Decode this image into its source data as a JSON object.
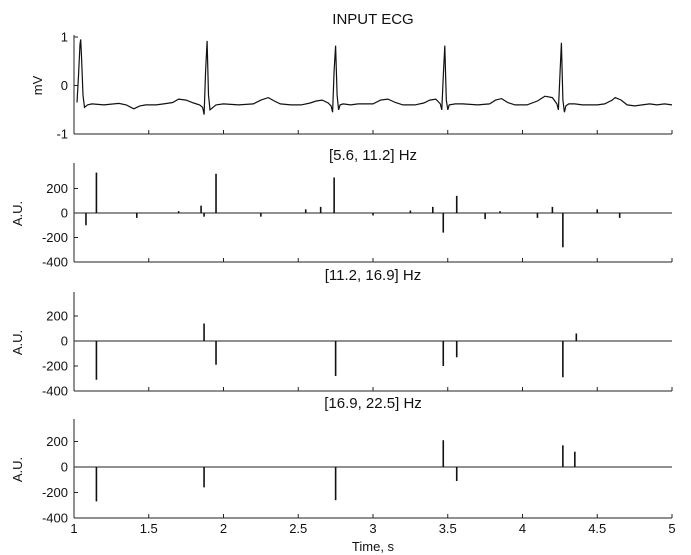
{
  "chart_data": [
    {
      "type": "line",
      "title": "INPUT ECG",
      "xlabel": "",
      "ylabel": "mV",
      "xlim": [
        1,
        5
      ],
      "ylim": [
        -1,
        1
      ],
      "yticks": [
        1,
        0,
        -1
      ],
      "grid": false,
      "series": [
        {
          "x": [
            1.02,
            1.03,
            1.04,
            1.045,
            1.05,
            1.06,
            1.07,
            1.09,
            1.12,
            1.2,
            1.3,
            1.35,
            1.4,
            1.44,
            1.48,
            1.55,
            1.6,
            1.66,
            1.7,
            1.75,
            1.8,
            1.84,
            1.86,
            1.87,
            1.88,
            1.89,
            1.9,
            1.91,
            1.95,
            2.0,
            2.1,
            2.2,
            2.25,
            2.3,
            2.34,
            2.38,
            2.45,
            2.52,
            2.58,
            2.62,
            2.66,
            2.7,
            2.72,
            2.73,
            2.74,
            2.75,
            2.76,
            2.77,
            2.78,
            2.8,
            2.85,
            2.9,
            3.0,
            3.05,
            3.1,
            3.15,
            3.2,
            3.28,
            3.34,
            3.38,
            3.42,
            3.45,
            3.46,
            3.47,
            3.48,
            3.49,
            3.5,
            3.51,
            3.55,
            3.6,
            3.7,
            3.78,
            3.82,
            3.86,
            3.9,
            3.95,
            4.03,
            4.1,
            4.15,
            4.2,
            4.23,
            4.24,
            4.25,
            4.26,
            4.27,
            4.28,
            4.29,
            4.31,
            4.35,
            4.4,
            4.5,
            4.55,
            4.6,
            4.62,
            4.66,
            4.7,
            4.75,
            4.8,
            4.85,
            4.9,
            4.95,
            5.0
          ],
          "y": [
            -0.35,
            0.2,
            0.85,
            0.95,
            0.6,
            -0.2,
            -0.45,
            -0.4,
            -0.38,
            -0.4,
            -0.37,
            -0.4,
            -0.48,
            -0.42,
            -0.4,
            -0.4,
            -0.38,
            -0.35,
            -0.28,
            -0.3,
            -0.36,
            -0.4,
            -0.45,
            -0.6,
            0.3,
            0.92,
            -0.2,
            -0.5,
            -0.4,
            -0.38,
            -0.4,
            -0.38,
            -0.3,
            -0.25,
            -0.32,
            -0.38,
            -0.4,
            -0.4,
            -0.36,
            -0.32,
            -0.3,
            -0.36,
            -0.42,
            -0.55,
            0.3,
            0.82,
            -0.2,
            -0.5,
            -0.4,
            -0.38,
            -0.4,
            -0.38,
            -0.38,
            -0.3,
            -0.28,
            -0.35,
            -0.4,
            -0.4,
            -0.36,
            -0.3,
            -0.28,
            -0.38,
            -0.5,
            0.2,
            0.82,
            -0.3,
            -0.5,
            -0.4,
            -0.38,
            -0.38,
            -0.4,
            -0.38,
            -0.3,
            -0.27,
            -0.35,
            -0.4,
            -0.4,
            -0.32,
            -0.22,
            -0.25,
            -0.38,
            -0.5,
            0.2,
            0.88,
            -0.3,
            -0.55,
            -0.42,
            -0.38,
            -0.38,
            -0.4,
            -0.4,
            -0.38,
            -0.3,
            -0.25,
            -0.3,
            -0.4,
            -0.42,
            -0.4,
            -0.38,
            -0.4,
            -0.38,
            -0.4
          ]
        }
      ]
    },
    {
      "type": "line",
      "title": "[5.6, 11.2] Hz",
      "xlabel": "",
      "ylabel": "A.U.",
      "xlim": [
        1,
        5
      ],
      "ylim": [
        -400,
        350
      ],
      "yticks": [
        200,
        0,
        -200,
        -400
      ],
      "grid": false,
      "series": [
        {
          "x": [
            1.08,
            1.15,
            1.42,
            1.7,
            1.85,
            1.87,
            1.95,
            2.25,
            2.55,
            2.65,
            2.74,
            3.0,
            3.25,
            3.4,
            3.47,
            3.56,
            3.75,
            3.85,
            4.1,
            4.2,
            4.27,
            4.5,
            4.65
          ],
          "y": [
            -100,
            330,
            -40,
            15,
            60,
            -30,
            320,
            -30,
            30,
            50,
            290,
            -20,
            20,
            50,
            -160,
            140,
            -50,
            15,
            -40,
            50,
            -280,
            30,
            -40
          ]
        }
      ]
    },
    {
      "type": "line",
      "title": "[11.2, 16.9] Hz",
      "xlabel": "",
      "ylabel": "A.U.",
      "xlim": [
        1,
        5
      ],
      "ylim": [
        -400,
        350
      ],
      "yticks": [
        200,
        0,
        -200,
        -400
      ],
      "grid": false,
      "series": [
        {
          "x": [
            1.15,
            1.87,
            1.95,
            2.75,
            3.47,
            3.56,
            4.27,
            4.36
          ],
          "y": [
            -310,
            140,
            -190,
            -280,
            -200,
            -130,
            -290,
            60
          ]
        }
      ]
    },
    {
      "type": "line",
      "title": "[16.9, 22.5] Hz",
      "xlabel": "Time, s",
      "ylabel": "A.U.",
      "xlim": [
        1,
        5
      ],
      "ylim": [
        -400,
        350
      ],
      "xticks": [
        1,
        1.5,
        2,
        2.5,
        3,
        3.5,
        4,
        4.5,
        5
      ],
      "yticks": [
        200,
        0,
        -200,
        -400
      ],
      "grid": false,
      "series": [
        {
          "x": [
            1.15,
            1.87,
            2.75,
            3.47,
            3.56,
            4.27,
            4.35
          ],
          "y": [
            -270,
            -160,
            -260,
            210,
            -110,
            170,
            120
          ]
        }
      ]
    }
  ]
}
